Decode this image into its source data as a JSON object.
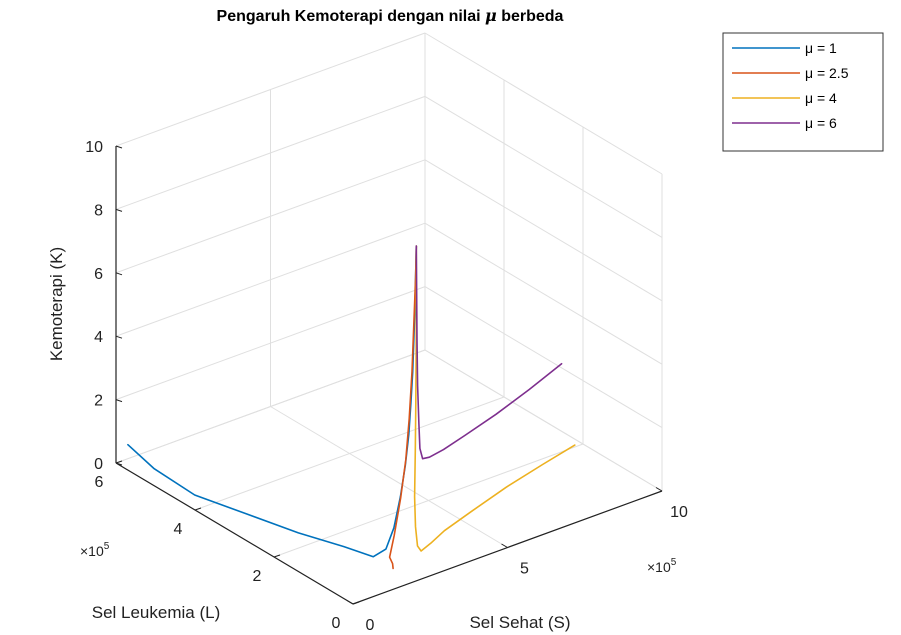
{
  "chart_data": {
    "type": "line3d",
    "title_parts": {
      "before": "Pengaruh  Kemoterapi  dengan  nilai ",
      "symbol": "μ",
      "after": " berbeda"
    },
    "xlabel": "Sel Sehat (S)",
    "ylabel": "Sel Leukemia (L)",
    "zlabel": "Kemoterapi (K)",
    "x_multiplier": "×10",
    "y_multiplier": "×10",
    "multiplier_exponent": "5",
    "xlim": [
      0,
      1000000
    ],
    "ylim": [
      0,
      600000
    ],
    "zlim": [
      0,
      10
    ],
    "x_ticks": [
      0,
      500000,
      1000000
    ],
    "x_tick_labels": [
      "0",
      "5",
      "10"
    ],
    "y_ticks": [
      0,
      200000,
      400000,
      600000
    ],
    "y_tick_labels": [
      "0",
      "2",
      "4",
      "6"
    ],
    "z_ticks": [
      0,
      2,
      4,
      6,
      8,
      10
    ],
    "z_tick_labels": [
      "0",
      "2",
      "4",
      "6",
      "8",
      "10"
    ],
    "grid": true,
    "legend_position": "top-right",
    "series": [
      {
        "name": "μ  =  1",
        "color": "#0072BD",
        "points": [
          [
            0,
            570000,
            0.8
          ],
          [
            20000,
            520000,
            0.35
          ],
          [
            50000,
            440000,
            0.0
          ],
          [
            90000,
            340000,
            0.0
          ],
          [
            130000,
            240000,
            0.0
          ],
          [
            175000,
            160000,
            0.0
          ],
          [
            200000,
            105000,
            0.0
          ],
          [
            219000,
            88000,
            0.3
          ],
          [
            232000,
            78000,
            1.0
          ],
          [
            243000,
            70000,
            2.0
          ],
          [
            251000,
            64000,
            3.0
          ],
          [
            256000,
            59000,
            4.0
          ],
          [
            259000,
            56000,
            5.0
          ],
          [
            261000,
            53000,
            6.0
          ],
          [
            262000,
            51000,
            7.0
          ],
          [
            263000,
            49000,
            8.0
          ],
          [
            264000,
            48000,
            9.0
          ],
          [
            265000,
            47000,
            10.0
          ]
        ]
      },
      {
        "name": "μ  =  2.5",
        "color": "#D95319",
        "points": [
          [
            200000,
            55000,
            0.0
          ],
          [
            215000,
            68000,
            0.0
          ],
          [
            218000,
            78000,
            0.12
          ],
          [
            228000,
            74000,
            0.8
          ],
          [
            240000,
            67000,
            2.0
          ],
          [
            250000,
            62000,
            3.2
          ],
          [
            256000,
            58000,
            4.5
          ],
          [
            260000,
            54000,
            6.0
          ],
          [
            262000,
            51000,
            7.5
          ],
          [
            264000,
            48000,
            9.0
          ],
          [
            265000,
            47000,
            10.0
          ]
        ]
      },
      {
        "name": "μ  =  4",
        "color": "#EDB120",
        "points": [
          [
            980000,
            205000,
            0.0
          ],
          [
            850000,
            185000,
            0.0
          ],
          [
            700000,
            160000,
            0.0
          ],
          [
            550000,
            130000,
            0.0
          ],
          [
            430000,
            105000,
            0.0
          ],
          [
            360000,
            85000,
            0.0
          ],
          [
            315000,
            74000,
            0.0
          ],
          [
            293000,
            66000,
            0.3
          ],
          [
            279000,
            60000,
            1.0
          ],
          [
            271000,
            56000,
            2.0
          ],
          [
            268000,
            52000,
            3.5
          ],
          [
            267000,
            50000,
            5.0
          ],
          [
            266000,
            48000,
            7.0
          ],
          [
            265000,
            47000,
            10.0
          ]
        ]
      },
      {
        "name": "μ  =  6",
        "color": "#7E2F8E",
        "points": [
          [
            950000,
            215000,
            2.6
          ],
          [
            820000,
            195000,
            2.4
          ],
          [
            680000,
            170000,
            2.3
          ],
          [
            540000,
            140000,
            2.35
          ],
          [
            440000,
            115000,
            2.45
          ],
          [
            370000,
            96000,
            2.6
          ],
          [
            330000,
            82000,
            2.8
          ],
          [
            306000,
            70000,
            3.3
          ],
          [
            290000,
            60000,
            4.2
          ],
          [
            278000,
            54000,
            5.5
          ],
          [
            271000,
            50000,
            7.0
          ],
          [
            265000,
            47000,
            10.0
          ]
        ]
      }
    ]
  }
}
